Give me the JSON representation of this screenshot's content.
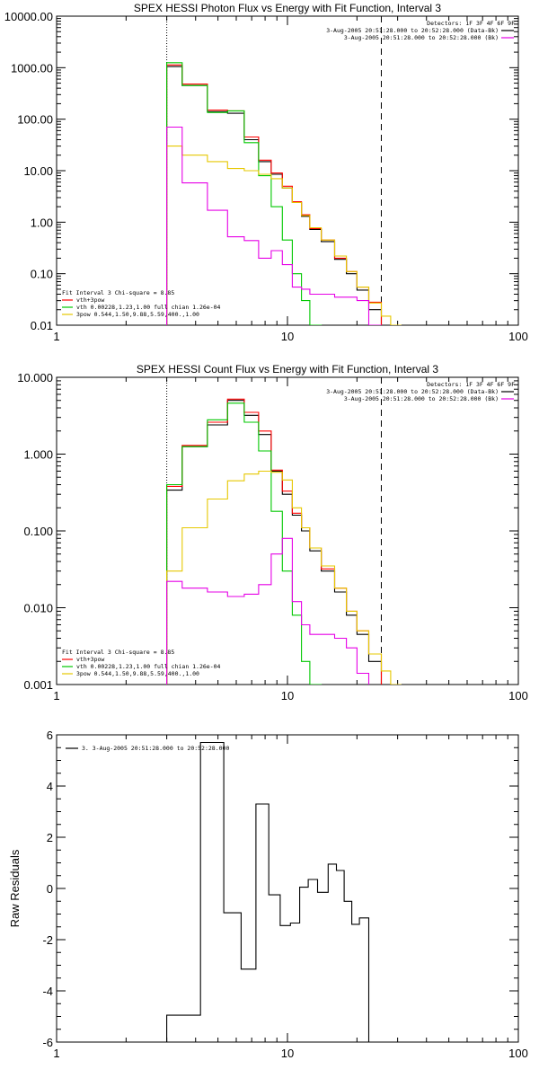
{
  "colors": {
    "data": "#000000",
    "total": "#ff0000",
    "thermal": "#00c800",
    "powerlaw": "#e6c800",
    "background": "#e600e6"
  },
  "chart_data": [
    {
      "type": "line",
      "title": "SPEX HESSI Photon Flux vs Energy with Fit Function, Interval 3",
      "xscale": "log",
      "yscale": "log",
      "xlim": [
        1,
        100
      ],
      "ylim": [
        0.01,
        10000
      ],
      "xticks": [
        1,
        10,
        100
      ],
      "xtick_labels": [
        "1",
        "10",
        "100"
      ],
      "yticks": [
        0.01,
        0.1,
        1,
        10,
        100,
        1000,
        10000
      ],
      "ytick_labels": [
        "0.01",
        "0.10",
        "1.00",
        "10.00",
        "100.00",
        "1000.00",
        "10000.00"
      ],
      "vlines": [
        {
          "x": 3,
          "style": "dotted"
        },
        {
          "x": 25.5,
          "style": "dashed"
        }
      ],
      "legend_right": {
        "detectors": "Detectors: 1F 3F 4F 6F 9F",
        "lines": [
          {
            "text": "3-Aug-2005 20:51:28.000 to 20:52:28.000 (Data-Bk)",
            "color_key": "data"
          },
          {
            "text": "3-Aug-2005 20:51:28.000 to 20:52:28.000 (Bk)",
            "color_key": "background"
          }
        ]
      },
      "legend_left": {
        "header": "Fit Interval 3   Chi-square = 8.85",
        "lines": [
          {
            "text": "vth+3pow",
            "color_key": "total"
          },
          {
            "text": "vth 0.00228,1.23,1.00  full chian 1.26e-04",
            "color_key": "thermal"
          },
          {
            "text": "3pow 0.544,1.50,9.88,5.59,400.,1.00",
            "color_key": "powerlaw"
          }
        ]
      },
      "edges": [
        3,
        3.5,
        4.5,
        5.5,
        6.5,
        7.5,
        8.5,
        9.5,
        10.5,
        11.5,
        12.5,
        14,
        16,
        18,
        20,
        22.5,
        25.5,
        28,
        31
      ],
      "series": [
        {
          "color_key": "data",
          "values": [
            1050,
            450,
            140,
            130,
            40,
            15,
            8.5,
            4.6,
            2.4,
            1.3,
            0.72,
            0.42,
            0.19,
            0.1,
            0.048,
            0.02,
            null,
            null
          ]
        },
        {
          "color_key": "total",
          "values": [
            1130,
            480,
            150,
            145,
            45,
            16,
            9,
            5,
            2.5,
            1.4,
            0.75,
            0.45,
            0.2,
            0.11,
            0.055,
            0.028,
            null,
            null
          ]
        },
        {
          "color_key": "thermal",
          "values": [
            1250,
            450,
            135,
            145,
            35,
            8,
            2,
            0.45,
            0.1,
            0.03,
            0.008,
            null,
            null,
            null,
            null,
            null,
            null,
            null
          ]
        },
        {
          "color_key": "powerlaw",
          "values": [
            30,
            20,
            15,
            11,
            10,
            8.5,
            7,
            4.6,
            2.4,
            1.35,
            0.78,
            0.45,
            0.22,
            0.11,
            0.055,
            0.027,
            0.015,
            0.01
          ]
        },
        {
          "color_key": "background",
          "values": [
            70,
            5.8,
            1.7,
            0.52,
            0.44,
            0.2,
            0.28,
            0.15,
            0.055,
            0.05,
            0.04,
            0.04,
            0.035,
            0.035,
            0.03,
            0.01,
            null,
            null
          ]
        }
      ]
    },
    {
      "type": "line",
      "title": "SPEX HESSI Count Flux vs Energy with Fit Function, Interval 3",
      "xscale": "log",
      "yscale": "log",
      "xlim": [
        1,
        100
      ],
      "ylim": [
        0.001,
        10
      ],
      "xticks": [
        1,
        10,
        100
      ],
      "xtick_labels": [
        "1",
        "10",
        "100"
      ],
      "yticks": [
        0.001,
        0.01,
        0.1,
        1,
        10
      ],
      "ytick_labels": [
        "0.001",
        "0.010",
        "0.100",
        "1.000",
        "10.000"
      ],
      "vlines": [
        {
          "x": 3,
          "style": "dotted"
        },
        {
          "x": 25.5,
          "style": "dashed"
        }
      ],
      "legend_right": {
        "detectors": "Detectors: 1F 3F 4F 6F 9F",
        "lines": [
          {
            "text": "3-Aug-2005 20:51:28.000 to 20:52:28.000 (Data-Bk)",
            "color_key": "data"
          },
          {
            "text": "3-Aug-2005 20:51:28.000 to 20:52:28.000 (Bk)",
            "color_key": "background"
          }
        ]
      },
      "legend_left": {
        "header": "Fit Interval 3   Chi-square = 8.85",
        "lines": [
          {
            "text": "vth+3pow",
            "color_key": "total"
          },
          {
            "text": "vth 0.00228,1.23,1.00  full chian 1.26e-04",
            "color_key": "thermal"
          },
          {
            "text": "3pow 0.544,1.50,9.88,5.59,400.,1.00",
            "color_key": "powerlaw"
          }
        ]
      },
      "edges": [
        3,
        3.5,
        4.5,
        5.5,
        6.5,
        7.5,
        8.5,
        9.5,
        10.5,
        11.5,
        12.5,
        14,
        16,
        18,
        20,
        22.5,
        25.5,
        28,
        31
      ],
      "series": [
        {
          "color_key": "data",
          "values": [
            0.34,
            1.25,
            2.4,
            5.0,
            3.2,
            1.8,
            0.6,
            0.3,
            0.16,
            0.1,
            0.055,
            0.03,
            0.016,
            0.008,
            0.0045,
            0.002,
            null,
            null
          ]
        },
        {
          "color_key": "total",
          "values": [
            0.38,
            1.3,
            2.6,
            5.2,
            3.5,
            2.0,
            0.62,
            0.33,
            0.17,
            0.11,
            0.06,
            0.032,
            0.018,
            0.009,
            0.005,
            0.0025,
            null,
            null
          ]
        },
        {
          "color_key": "thermal",
          "values": [
            0.4,
            1.25,
            2.8,
            4.6,
            2.6,
            1.1,
            0.18,
            0.03,
            0.008,
            0.002,
            0.001,
            null,
            null,
            null,
            null,
            null,
            null,
            null
          ]
        },
        {
          "color_key": "powerlaw",
          "values": [
            0.03,
            0.11,
            0.26,
            0.45,
            0.55,
            0.6,
            0.58,
            0.46,
            0.2,
            0.11,
            0.06,
            0.035,
            0.018,
            0.009,
            0.005,
            0.0025,
            0.0015,
            0.001
          ]
        },
        {
          "color_key": "background",
          "values": [
            0.022,
            0.018,
            0.016,
            0.014,
            0.015,
            0.02,
            0.05,
            0.08,
            0.012,
            0.006,
            0.0045,
            0.0045,
            0.004,
            0.003,
            0.0014,
            null,
            null,
            null
          ]
        }
      ]
    },
    {
      "type": "line",
      "title": "",
      "xscale": "log",
      "yscale": "linear",
      "xlim": [
        1,
        100
      ],
      "ylim": [
        -6,
        6
      ],
      "ylabel": "Raw Residuals",
      "xticks": [
        1,
        10,
        100
      ],
      "xtick_labels": [
        "1",
        "10",
        "100"
      ],
      "yticks": [
        -6,
        -4,
        -2,
        0,
        2,
        4,
        6
      ],
      "ytick_labels": [
        "-6",
        "-4",
        "-2",
        "0",
        "2",
        "4",
        "6"
      ],
      "legend": {
        "text": "3.  3-Aug-2005 20:51:28.000 to 20:52:28.000",
        "color_key": "data"
      },
      "edges": [
        3,
        4.2,
        5.3,
        6.3,
        7.3,
        8.3,
        9.3,
        10.3,
        11.3,
        12.3,
        13.5,
        15,
        16.3,
        17.6,
        19,
        20.5,
        22.5,
        25
      ],
      "series": [
        {
          "color_key": "data",
          "values": [
            -4.95,
            5.7,
            -0.95,
            -3.15,
            3.3,
            -0.25,
            -1.45,
            -1.35,
            0.05,
            0.35,
            -0.15,
            0.95,
            0.7,
            -0.5,
            -1.4,
            -1.15,
            -6
          ]
        }
      ]
    }
  ]
}
